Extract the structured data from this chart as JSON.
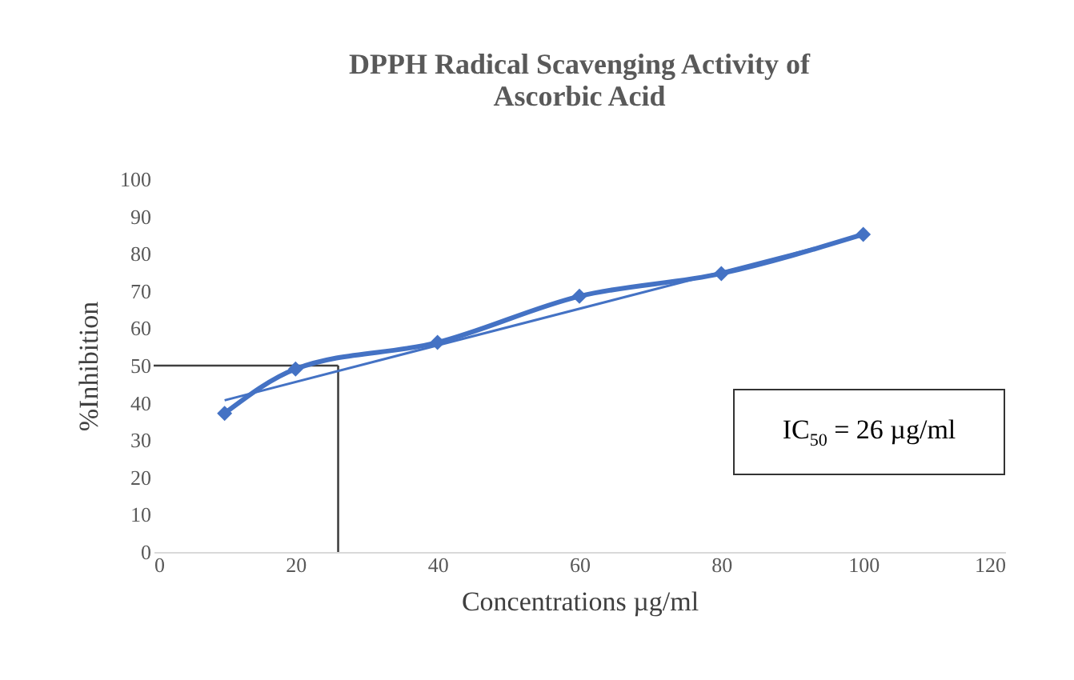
{
  "chart_data": {
    "type": "line",
    "title": "DPPH Radical Scavenging Activity of Ascorbic Acid",
    "xlabel": "Concentrations µg/ml",
    "ylabel": "%Inhibition",
    "x": [
      10,
      20,
      40,
      60,
      80,
      100
    ],
    "series": [
      {
        "color": "#4472c4",
        "marker": "diamond",
        "values": [
          37.2,
          49.1,
          56.2,
          68.6,
          74.7,
          85.2
        ]
      },
      {
        "type": "line",
        "color": "#4472c4",
        "marker": "none",
        "x": [
          10,
          100
        ],
        "values": [
          40.7,
          84.9
        ]
      }
    ],
    "xlim": [
      0,
      120
    ],
    "xticks": [
      0,
      20,
      40,
      60,
      80,
      100,
      120
    ],
    "ylim": [
      0,
      100
    ],
    "yticks": [
      0,
      10,
      20,
      30,
      40,
      50,
      60,
      70,
      80,
      90,
      100
    ],
    "grid": false,
    "ref_lines": [
      {
        "axis": "y",
        "value": 50,
        "color": "#404040"
      },
      {
        "axis": "x",
        "value": 26,
        "color": "#404040"
      }
    ],
    "annotations": [
      "IC$_{50}$ = 26 µg/ml"
    ]
  }
}
